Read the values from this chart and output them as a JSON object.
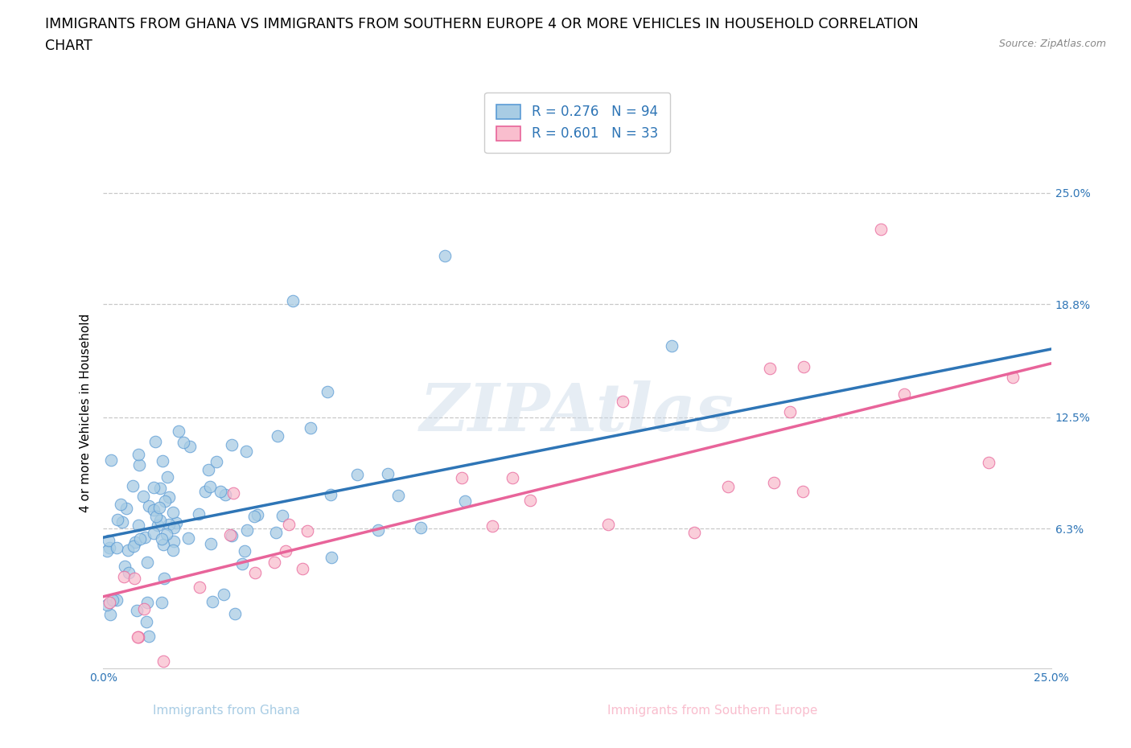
{
  "title_line1": "IMMIGRANTS FROM GHANA VS IMMIGRANTS FROM SOUTHERN EUROPE 4 OR MORE VEHICLES IN HOUSEHOLD CORRELATION",
  "title_line2": "CHART",
  "source": "Source: ZipAtlas.com",
  "ylabel": "4 or more Vehicles in Household",
  "xlabel_ghana": "Immigrants from Ghana",
  "xlabel_s_europe": "Immigrants from Southern Europe",
  "xlim": [
    0.0,
    25.0
  ],
  "ylim": [
    -1.5,
    27.0
  ],
  "yticks": [
    6.3,
    12.5,
    18.8,
    25.0
  ],
  "xtick_labels": [
    "0.0%",
    "25.0%"
  ],
  "ytick_labels": [
    "6.3%",
    "12.5%",
    "18.8%",
    "25.0%"
  ],
  "ghana_color": "#a8cce4",
  "s_europe_color": "#f9bece",
  "ghana_edge_color": "#5b9bd5",
  "s_europe_edge_color": "#e8649a",
  "ghana_line_color": "#2e75b6",
  "s_europe_line_color": "#e8649a",
  "ghana_dash_color": "#9dc3e6",
  "R_ghana": 0.276,
  "N_ghana": 94,
  "R_s_europe": 0.601,
  "N_s_europe": 33,
  "watermark": "ZIPAtlas",
  "watermark_color": "#c8d8e8",
  "background_color": "#ffffff",
  "ghana_slope": 0.42,
  "ghana_intercept": 5.8,
  "s_europe_slope": 0.52,
  "s_europe_intercept": 2.5,
  "grid_color": "#c8c8c8",
  "grid_style": "--",
  "title_fontsize": 12.5,
  "axis_label_fontsize": 11,
  "tick_fontsize": 10,
  "legend_fontsize": 12,
  "tick_color": "#2e75b6"
}
